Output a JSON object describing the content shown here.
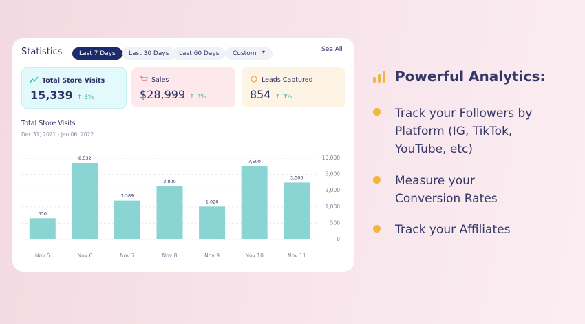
{
  "panel": {
    "title": "Statistics",
    "tabs": [
      "Last 7 Days",
      "Last 30 Days",
      "Last 60 Days",
      "Custom"
    ],
    "see_all": "See All",
    "cards": [
      {
        "label": "Total Store Visits",
        "value": "15,339",
        "change": "↑ 3%"
      },
      {
        "label": "Sales",
        "value": "$28,999",
        "change": "↑ 3%"
      },
      {
        "label": "Leads Captured",
        "value": "854",
        "change": "↑ 3%"
      }
    ]
  },
  "chart_data": {
    "type": "bar",
    "title": "Total Store Visits",
    "subtitle": "Dec 31, 2021 - Jan 06, 2022",
    "categories": [
      "Nov 5",
      "Nov 6",
      "Nov 7",
      "Nov 8",
      "Nov 9",
      "Nov 10",
      "Nov 11"
    ],
    "values": [
      650,
      8532,
      1389,
      2800,
      1020,
      7500,
      3500
    ],
    "value_labels": [
      "650",
      "8,532",
      "1,389",
      "2,800",
      "1,020",
      "7,500",
      "3,500"
    ],
    "color": "#8ad5d3",
    "ylim": [
      0,
      10000
    ],
    "yticks": [
      0,
      500,
      {
        "value": 1000,
        "label": "1,000"
      },
      {
        "value": 2000,
        "label": "2,000"
      },
      {
        "value": 5000,
        "label": "5,000"
      },
      {
        "value": 10000,
        "label": "10,000"
      }
    ],
    "grid": true
  },
  "features": {
    "title": "Powerful Analytics:",
    "bullets": [
      "Track your Followers by Platform (IG, TikTok, YouTube, etc)",
      "Measure your Conversion Rates",
      "Track your Affiliates"
    ]
  }
}
